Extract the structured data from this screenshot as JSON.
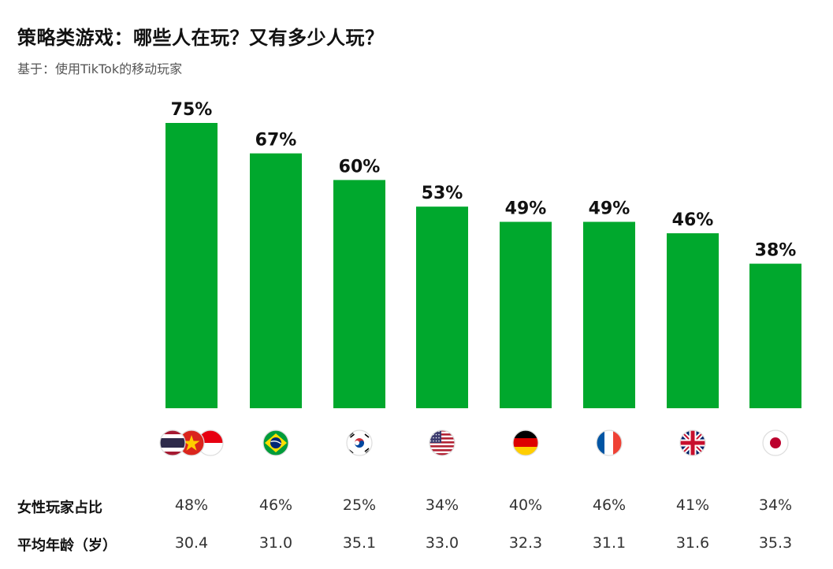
{
  "title": "策略类游戏：哪些人在玩？又有多少人玩？",
  "subtitle": "基于：使用TikTok的移动玩家",
  "colors": {
    "bar": "#00a82d"
  },
  "chart_data": {
    "type": "bar",
    "categories": [
      "TH/VN/ID",
      "BR",
      "KR",
      "US",
      "DE",
      "FR",
      "GB",
      "JP"
    ],
    "values": [
      75,
      67,
      60,
      53,
      49,
      49,
      46,
      38
    ],
    "value_labels": [
      "75%",
      "67%",
      "60%",
      "53%",
      "49%",
      "49%",
      "46%",
      "38%"
    ],
    "ylim": [
      0,
      100
    ],
    "grid": false
  },
  "flags": [
    [
      "thailand-flag",
      "vietnam-flag",
      "indonesia-flag"
    ],
    [
      "brazil-flag"
    ],
    [
      "south-korea-flag"
    ],
    [
      "usa-flag"
    ],
    [
      "germany-flag"
    ],
    [
      "france-flag"
    ],
    [
      "uk-flag"
    ],
    [
      "japan-flag"
    ]
  ],
  "table": {
    "rows": [
      {
        "label": "女性玩家占比",
        "values": [
          "48%",
          "46%",
          "25%",
          "34%",
          "40%",
          "46%",
          "41%",
          "34%"
        ]
      },
      {
        "label": "平均年龄（岁）",
        "values": [
          "30.4",
          "31.0",
          "35.1",
          "33.0",
          "32.3",
          "31.1",
          "31.6",
          "35.3"
        ]
      }
    ]
  }
}
